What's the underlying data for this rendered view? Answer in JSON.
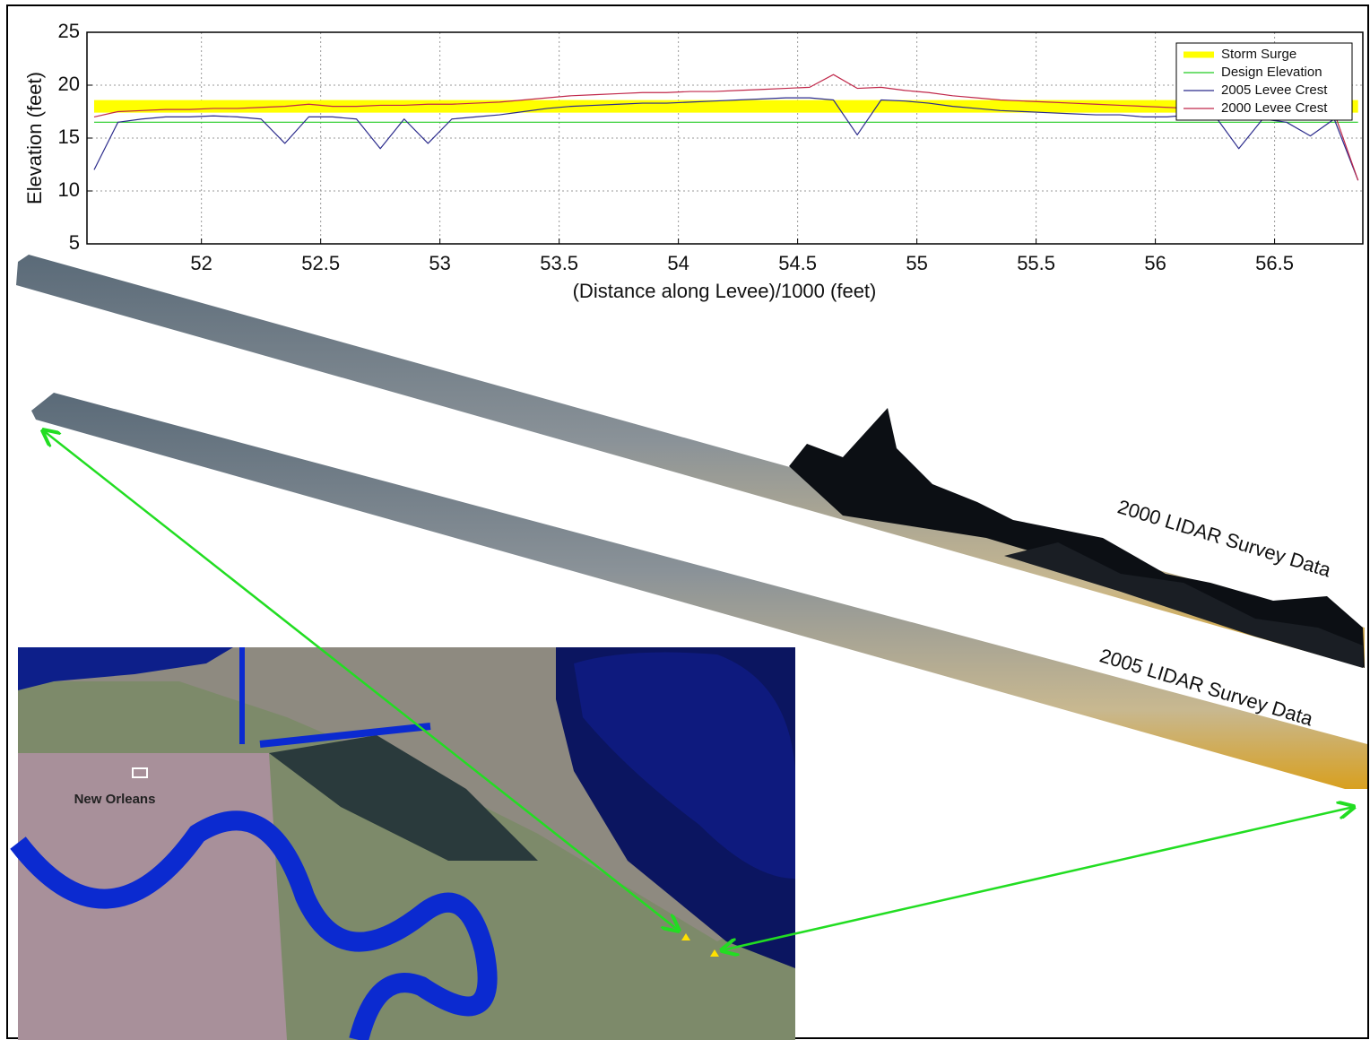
{
  "chart_data": {
    "type": "line",
    "ylabel": "Elevation (feet)",
    "xlabel": "(Distance along Levee)/1000 (feet)",
    "xlim": [
      51.52,
      56.87
    ],
    "ylim": [
      5,
      25
    ],
    "xticks": [
      52,
      52.5,
      53,
      53.5,
      54,
      54.5,
      55,
      55.5,
      56,
      56.5
    ],
    "yticks": [
      5,
      10,
      15,
      20,
      25
    ],
    "grid": true,
    "legend": "upper right",
    "x": [
      51.55,
      51.65,
      51.75,
      51.85,
      51.95,
      52.05,
      52.15,
      52.25,
      52.35,
      52.45,
      52.55,
      52.65,
      52.75,
      52.85,
      52.95,
      53.05,
      53.15,
      53.25,
      53.35,
      53.45,
      53.55,
      53.65,
      53.75,
      53.85,
      53.95,
      54.05,
      54.15,
      54.25,
      54.35,
      54.45,
      54.55,
      54.65,
      54.75,
      54.85,
      54.95,
      55.05,
      55.15,
      55.25,
      55.35,
      55.45,
      55.55,
      55.65,
      55.75,
      55.85,
      55.95,
      56.05,
      56.15,
      56.25,
      56.35,
      56.45,
      56.55,
      56.65,
      56.75,
      56.85
    ],
    "series": [
      {
        "name": "Storm Surge",
        "color": "#ffff00",
        "linewidth": 14,
        "values": [
          18,
          18,
          18,
          18,
          18,
          18,
          18,
          18,
          18,
          18,
          18,
          18,
          18,
          18,
          18,
          18,
          18,
          18,
          18,
          18,
          18,
          18,
          18,
          18,
          18,
          18,
          18,
          18,
          18,
          18,
          18,
          18,
          18,
          18,
          18,
          18,
          18,
          18,
          18,
          18,
          18,
          18,
          18,
          18,
          18,
          18,
          18,
          18,
          18,
          18,
          18,
          18,
          18,
          18
        ]
      },
      {
        "name": "Design Elevation",
        "color": "#22cc22",
        "linewidth": 1.2,
        "values": [
          16.5,
          16.5,
          16.5,
          16.5,
          16.5,
          16.5,
          16.5,
          16.5,
          16.5,
          16.5,
          16.5,
          16.5,
          16.5,
          16.5,
          16.5,
          16.5,
          16.5,
          16.5,
          16.5,
          16.5,
          16.5,
          16.5,
          16.5,
          16.5,
          16.5,
          16.5,
          16.5,
          16.5,
          16.5,
          16.5,
          16.5,
          16.5,
          16.5,
          16.5,
          16.5,
          16.5,
          16.5,
          16.5,
          16.5,
          16.5,
          16.5,
          16.5,
          16.5,
          16.5,
          16.5,
          16.5,
          16.5,
          16.5,
          16.5,
          16.5,
          16.5,
          16.5,
          16.5,
          16.5
        ]
      },
      {
        "name": "2005 Levee Crest",
        "color": "#2b2b8c",
        "linewidth": 1.2,
        "values": [
          12,
          16.5,
          16.8,
          17,
          17,
          17.1,
          17,
          16.8,
          14.5,
          17,
          17,
          16.8,
          14,
          16.8,
          14.5,
          16.8,
          17,
          17.2,
          17.5,
          17.8,
          18,
          18.1,
          18.2,
          18.3,
          18.3,
          18.4,
          18.5,
          18.6,
          18.7,
          18.8,
          18.8,
          18.6,
          15.3,
          18.6,
          18.5,
          18.3,
          18,
          17.8,
          17.6,
          17.5,
          17.4,
          17.3,
          17.2,
          17.2,
          17,
          17,
          17.2,
          17.1,
          14,
          16.8,
          16.5,
          15.2,
          16.8,
          11
        ]
      },
      {
        "name": "2000 Levee Crest",
        "color": "#c0284a",
        "linewidth": 1.2,
        "values": [
          17,
          17.5,
          17.6,
          17.7,
          17.7,
          17.8,
          17.8,
          17.9,
          18,
          18.2,
          18,
          18,
          18.1,
          18.1,
          18.2,
          18.2,
          18.3,
          18.4,
          18.6,
          18.8,
          19,
          19.1,
          19.2,
          19.3,
          19.3,
          19.4,
          19.4,
          19.5,
          19.6,
          19.7,
          19.8,
          21,
          19.7,
          19.8,
          19.5,
          19.3,
          19,
          18.8,
          18.6,
          18.5,
          18.4,
          18.3,
          18.2,
          18.1,
          18,
          17.9,
          17.8,
          17.8,
          17.7,
          17.6,
          17.6,
          17.5,
          17.4,
          11
        ]
      }
    ],
    "annotations": [
      "2000 LIDAR Survey Data",
      "2005 LIDAR Survey Data",
      "New Orleans"
    ]
  }
}
